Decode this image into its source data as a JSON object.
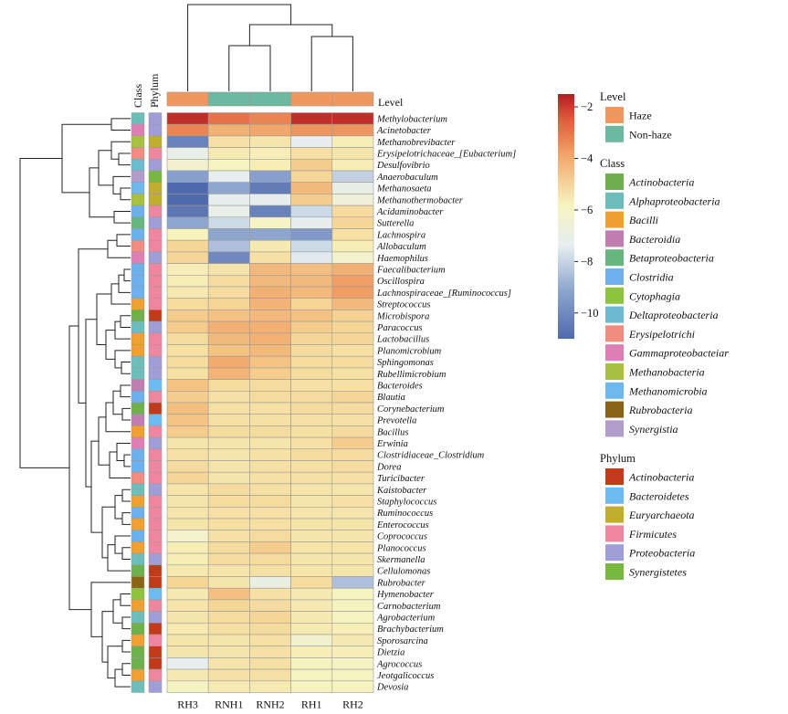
{
  "chart_data": {
    "type": "heatmap",
    "columns": [
      "RH3",
      "RNH1",
      "RNH2",
      "RH1",
      "RH2"
    ],
    "column_levels": [
      "Haze",
      "Non-haze",
      "Non-haze",
      "Haze",
      "Haze"
    ],
    "top_bar_label": "Level",
    "side_bar_labels": [
      "Class",
      "Phylum"
    ],
    "colorbar": {
      "min": -11,
      "max": -1.5,
      "ticks": [
        -2,
        -4,
        -6,
        -8,
        -10
      ],
      "tick_labels": [
        "−2",
        "−4",
        "−6",
        "−8",
        "−10"
      ]
    },
    "rows": [
      {
        "name": "Methylobacterium",
        "cls": "Alphaproteobacteria",
        "phy": "Proteobacteria",
        "v": [
          -1.8,
          -2.8,
          -3.0,
          -1.8,
          -1.8
        ]
      },
      {
        "name": "Acinetobacter",
        "cls": "Gammaproteobacteiar",
        "phy": "Proteobacteria",
        "v": [
          -3.0,
          -3.6,
          -3.4,
          -3.2,
          -3.2
        ]
      },
      {
        "name": "Methanobrevibacter",
        "cls": "Methanobacteria",
        "phy": "Euryarchaeota",
        "v": [
          -10.2,
          -4.8,
          -5.0,
          -7.2,
          -5.4
        ]
      },
      {
        "name": "Erysipelotrichaceae_[Eubacterium]",
        "cls": "Erysipelotrichi",
        "phy": "Firmicutes",
        "v": [
          -7.0,
          -5.2,
          -5.4,
          -4.8,
          -5.0
        ]
      },
      {
        "name": "Desulfovibrio",
        "cls": "Deltaproteobacteria",
        "phy": "Proteobacteria",
        "v": [
          -6.2,
          -5.6,
          -5.4,
          -4.2,
          -5.4
        ]
      },
      {
        "name": "Anaerobaculum",
        "cls": "Synergistia",
        "phy": "Synergistetes",
        "v": [
          -9.2,
          -7.2,
          -9.2,
          -4.4,
          -8.0
        ]
      },
      {
        "name": "Methanosaeta",
        "cls": "Methanomicrobia",
        "phy": "Euryarchaeota",
        "v": [
          -11.0,
          -9.0,
          -10.4,
          -3.8,
          -7.0
        ]
      },
      {
        "name": "Methanothermobacter",
        "cls": "Methanobacteria",
        "phy": "Euryarchaeota",
        "v": [
          -11.0,
          -7.2,
          -7.2,
          -4.2,
          -6.4
        ]
      },
      {
        "name": "Acidaminobacter",
        "cls": "Clostridia",
        "phy": "Firmicutes",
        "v": [
          -10.6,
          -7.0,
          -10.2,
          -7.8,
          -4.6
        ]
      },
      {
        "name": "Sutterella",
        "cls": "Betaproteobacteria",
        "phy": "Proteobacteria",
        "v": [
          -9.0,
          -7.8,
          -5.8,
          -7.2,
          -4.4
        ]
      },
      {
        "name": "Lachnospira",
        "cls": "Clostridia",
        "phy": "Firmicutes",
        "v": [
          -5.6,
          -9.0,
          -9.0,
          -9.4,
          -4.8
        ]
      },
      {
        "name": "Allobaculum",
        "cls": "Erysipelotrichi",
        "phy": "Firmicutes",
        "v": [
          -4.4,
          -8.4,
          -5.2,
          -7.8,
          -5.4
        ]
      },
      {
        "name": "Haemophilus",
        "cls": "Gammaproteobacteiar",
        "phy": "Proteobacteria",
        "v": [
          -4.4,
          -10.0,
          -4.8,
          -7.4,
          -6.0
        ]
      },
      {
        "name": "Faecalibacterium",
        "cls": "Clostridia",
        "phy": "Firmicutes",
        "v": [
          -5.4,
          -5.0,
          -3.8,
          -3.9,
          -3.6
        ]
      },
      {
        "name": "Oscillospira",
        "cls": "Clostridia",
        "phy": "Firmicutes",
        "v": [
          -5.4,
          -4.6,
          -3.8,
          -3.8,
          -3.3
        ]
      },
      {
        "name": "Lachnospiraceae_[Ruminococcus]",
        "cls": "Clostridia",
        "phy": "Firmicutes",
        "v": [
          -5.2,
          -4.6,
          -3.6,
          -3.8,
          -3.3
        ]
      },
      {
        "name": "Streptococcus",
        "cls": "Bacilli",
        "phy": "Firmicutes",
        "v": [
          -4.6,
          -4.4,
          -3.7,
          -4.4,
          -3.8
        ]
      },
      {
        "name": "Microbispora",
        "cls": "Actinobacteria",
        "phy": "Actinobacteria",
        "v": [
          -4.2,
          -4.0,
          -3.8,
          -4.0,
          -4.3
        ]
      },
      {
        "name": "Paracoccus",
        "cls": "Alphaproteobacteria",
        "phy": "Proteobacteria",
        "v": [
          -4.2,
          -3.6,
          -3.6,
          -4.2,
          -4.4
        ]
      },
      {
        "name": "Lactobacillus",
        "cls": "Bacilli",
        "phy": "Firmicutes",
        "v": [
          -4.6,
          -3.8,
          -3.6,
          -4.4,
          -4.4
        ]
      },
      {
        "name": "Planomicrobium",
        "cls": "Bacilli",
        "phy": "Firmicutes",
        "v": [
          -4.8,
          -4.0,
          -3.8,
          -4.6,
          -4.8
        ]
      },
      {
        "name": "Sphingomonas",
        "cls": "Alphaproteobacteria",
        "phy": "Proteobacteria",
        "v": [
          -4.6,
          -3.5,
          -4.0,
          -4.6,
          -4.6
        ]
      },
      {
        "name": "Rubellimicrobium",
        "cls": "Alphaproteobacteria",
        "phy": "Proteobacteria",
        "v": [
          -4.8,
          -3.7,
          -4.2,
          -4.6,
          -4.8
        ]
      },
      {
        "name": "Bacteroides",
        "cls": "Bacteroidia",
        "phy": "Bacteroidetes",
        "v": [
          -4.0,
          -4.6,
          -4.6,
          -4.8,
          -4.8
        ]
      },
      {
        "name": "Blautia",
        "cls": "Clostridia",
        "phy": "Firmicutes",
        "v": [
          -4.2,
          -4.8,
          -4.6,
          -4.6,
          -4.4
        ]
      },
      {
        "name": "Corynebacterium",
        "cls": "Actinobacteria",
        "phy": "Actinobacteria",
        "v": [
          -3.9,
          -4.8,
          -4.8,
          -4.6,
          -4.6
        ]
      },
      {
        "name": "Prevotella",
        "cls": "Bacteroidia",
        "phy": "Bacteroidetes",
        "v": [
          -4.0,
          -4.8,
          -4.8,
          -4.8,
          -4.8
        ]
      },
      {
        "name": "Bacillus",
        "cls": "Bacilli",
        "phy": "Firmicutes",
        "v": [
          -4.2,
          -4.6,
          -4.6,
          -4.8,
          -4.6
        ]
      },
      {
        "name": "Erwinia",
        "cls": "Gammaproteobacteiar",
        "phy": "Proteobacteria",
        "v": [
          -5.0,
          -5.0,
          -5.0,
          -4.8,
          -4.2
        ]
      },
      {
        "name": "Clostridiaceae_Clostridium",
        "cls": "Clostridia",
        "phy": "Firmicutes",
        "v": [
          -4.8,
          -5.0,
          -4.8,
          -4.6,
          -4.6
        ]
      },
      {
        "name": "Dorea",
        "cls": "Clostridia",
        "phy": "Firmicutes",
        "v": [
          -4.6,
          -5.0,
          -4.8,
          -4.8,
          -4.6
        ]
      },
      {
        "name": "Turicibacter",
        "cls": "Erysipelotrichi",
        "phy": "Firmicutes",
        "v": [
          -4.4,
          -5.0,
          -4.8,
          -4.8,
          -4.8
        ]
      },
      {
        "name": "Kaistobacter",
        "cls": "Alphaproteobacteria",
        "phy": "Proteobacteria",
        "v": [
          -5.0,
          -4.6,
          -4.8,
          -5.0,
          -5.0
        ]
      },
      {
        "name": "Staphylococcus",
        "cls": "Bacilli",
        "phy": "Firmicutes",
        "v": [
          -5.0,
          -4.6,
          -4.6,
          -5.0,
          -4.8
        ]
      },
      {
        "name": "Ruminococcus",
        "cls": "Clostridia",
        "phy": "Firmicutes",
        "v": [
          -5.0,
          -4.8,
          -4.8,
          -5.0,
          -5.0
        ]
      },
      {
        "name": "Enterococcus",
        "cls": "Bacilli",
        "phy": "Firmicutes",
        "v": [
          -5.0,
          -4.8,
          -4.8,
          -5.0,
          -5.0
        ]
      },
      {
        "name": "Coprococcus",
        "cls": "Clostridia",
        "phy": "Firmicutes",
        "v": [
          -6.0,
          -4.8,
          -4.6,
          -5.0,
          -5.0
        ]
      },
      {
        "name": "Planococcus",
        "cls": "Bacilli",
        "phy": "Firmicutes",
        "v": [
          -5.4,
          -4.6,
          -4.2,
          -5.0,
          -5.0
        ]
      },
      {
        "name": "Skermanella",
        "cls": "Alphaproteobacteria",
        "phy": "Proteobacteria",
        "v": [
          -5.4,
          -4.6,
          -4.6,
          -5.0,
          -5.0
        ]
      },
      {
        "name": "Cellulomonas",
        "cls": "Actinobacteria",
        "phy": "Actinobacteria",
        "v": [
          -5.2,
          -5.0,
          -4.8,
          -5.0,
          -5.0
        ]
      },
      {
        "name": "Rubrobacter",
        "cls": "Rubrobacteria",
        "phy": "Actinobacteria",
        "v": [
          -4.4,
          -5.0,
          -6.8,
          -4.6,
          -8.4
        ]
      },
      {
        "name": "Hymenobacter",
        "cls": "Cytophagia",
        "phy": "Bacteroidetes",
        "v": [
          -5.2,
          -3.9,
          -4.8,
          -5.2,
          -5.6
        ]
      },
      {
        "name": "Carnobacterium",
        "cls": "Bacilli",
        "phy": "Firmicutes",
        "v": [
          -5.0,
          -4.4,
          -4.6,
          -5.2,
          -5.6
        ]
      },
      {
        "name": "Agrobacterium",
        "cls": "Alphaproteobacteria",
        "phy": "Proteobacteria",
        "v": [
          -5.0,
          -4.6,
          -4.4,
          -5.2,
          -5.6
        ]
      },
      {
        "name": "Brachybacterium",
        "cls": "Actinobacteria",
        "phy": "Actinobacteria",
        "v": [
          -5.2,
          -4.8,
          -4.6,
          -5.2,
          -5.4
        ]
      },
      {
        "name": "Sporosarcina",
        "cls": "Bacilli",
        "phy": "Firmicutes",
        "v": [
          -5.0,
          -5.0,
          -4.8,
          -6.2,
          -5.2
        ]
      },
      {
        "name": "Dietzia",
        "cls": "Actinobacteria",
        "phy": "Actinobacteria",
        "v": [
          -5.0,
          -5.0,
          -4.8,
          -5.4,
          -5.4
        ]
      },
      {
        "name": "Agrococcus",
        "cls": "Actinobacteria",
        "phy": "Actinobacteria",
        "v": [
          -7.2,
          -5.0,
          -4.8,
          -5.6,
          -5.8
        ]
      },
      {
        "name": "Jeotgalicoccus",
        "cls": "Bacilli",
        "phy": "Firmicutes",
        "v": [
          -5.2,
          -4.8,
          -4.8,
          -5.6,
          -5.6
        ]
      },
      {
        "name": "Devosia",
        "cls": "Alphaproteobacteria",
        "phy": "Proteobacteria",
        "v": [
          -5.8,
          -5.2,
          -5.2,
          -5.6,
          -5.6
        ]
      }
    ],
    "legend": {
      "level": {
        "title": "Level",
        "items": [
          {
            "label": "Haze",
            "color": "#F0975F"
          },
          {
            "label": "Non-haze",
            "color": "#6DB8A0"
          }
        ]
      },
      "class": {
        "title": "Class",
        "items": [
          {
            "label": "Actinobacteria",
            "color": "#6DB04C"
          },
          {
            "label": "Alphaproteobacteria",
            "color": "#6DBDBA"
          },
          {
            "label": "Bacilli",
            "color": "#F0A030"
          },
          {
            "label": "Bacteroidia",
            "color": "#C07EB0"
          },
          {
            "label": "Betaproteobacteria",
            "color": "#67B680"
          },
          {
            "label": "Clostridia",
            "color": "#6CB1EE"
          },
          {
            "label": "Cytophagia",
            "color": "#8CC43C"
          },
          {
            "label": "Deltaproteobacteria",
            "color": "#6DBBD0"
          },
          {
            "label": "Erysipelotrichi",
            "color": "#F08C80"
          },
          {
            "label": "Gammaproteobacteiar",
            "color": "#DD7FB2"
          },
          {
            "label": "Methanobacteria",
            "color": "#A8C040"
          },
          {
            "label": "Methanomicrobia",
            "color": "#6DB8EC"
          },
          {
            "label": "Rubrobacteria",
            "color": "#8A6414"
          },
          {
            "label": "Synergistia",
            "color": "#B29CCC"
          }
        ]
      },
      "phylum": {
        "title": "Phylum",
        "items": [
          {
            "label": "Actinobacteria",
            "color": "#C23A1A"
          },
          {
            "label": "Bacteroidetes",
            "color": "#6DBBF0"
          },
          {
            "label": "Euryarchaeota",
            "color": "#C0AE2C"
          },
          {
            "label": "Firmicutes",
            "color": "#EE86A0"
          },
          {
            "label": "Proteobacteria",
            "color": "#A09ED6"
          },
          {
            "label": "Synergistetes",
            "color": "#78B840"
          }
        ]
      }
    }
  }
}
